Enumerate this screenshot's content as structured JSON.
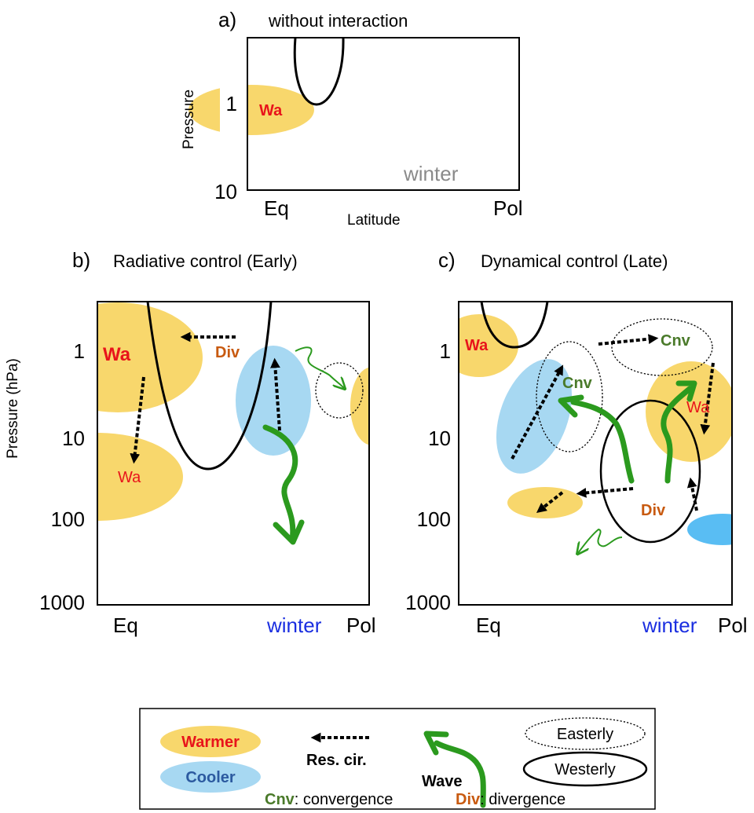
{
  "panel_a": {
    "letter": "a)",
    "title": "without interaction",
    "y_label": "Pressure",
    "x_label": "Latitude",
    "ticks_y": [
      "1",
      "10"
    ],
    "ticks_x": [
      "Eq",
      "Pol"
    ],
    "warm_label": "Wa",
    "winter_label": "winter"
  },
  "panel_b": {
    "letter": "b)",
    "title": "Radiative control (Early)",
    "y_label": "Pressure (hPa)",
    "ticks_y": [
      "1",
      "10",
      "100",
      "1000"
    ],
    "ticks_x": [
      "Eq",
      "winter",
      "Pol"
    ],
    "warm_label_upper": "Wa",
    "warm_label_lower": "Wa",
    "div_label": "Div"
  },
  "panel_c": {
    "letter": "c)",
    "title": "Dynamical control (Late)",
    "ticks_y": [
      "1",
      "10",
      "100",
      "1000"
    ],
    "ticks_x": [
      "Eq",
      "winter",
      "Pol"
    ],
    "warm_label_upper": "Wa",
    "warm_label_right": "Wa",
    "cnv_label_top": "Cnv",
    "cnv_label_mid": "Cnv",
    "div_label": "Div"
  },
  "legend": {
    "warmer": "Warmer",
    "cooler": "Cooler",
    "res_cir": "Res. cir.",
    "wave": "Wave",
    "easterly": "Easterly",
    "westerly": "Westerly",
    "cnv_abbr": "Cnv",
    "cnv_text": ": convergence",
    "div_abbr": "Div",
    "div_text": ": divergence"
  },
  "colors": {
    "warm": "#f8d76c",
    "cool": "#a7d8f2",
    "cool_dark": "#59bdf3",
    "wave": "#2b9a1e",
    "red": "#e8141b",
    "div": "#c85a10",
    "cnv": "#4a7a2a",
    "winter_blue": "#1a2ee0",
    "winter_grey": "#8a8a8a"
  }
}
